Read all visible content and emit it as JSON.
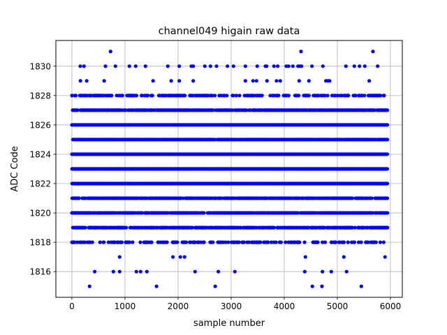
{
  "chart_data": {
    "type": "scatter",
    "title": "channel049 higain raw data",
    "xlabel": "sample number",
    "ylabel": "ADC Code",
    "xlim": [
      -302,
      6224
    ],
    "ylim": [
      1814.25,
      1831.75
    ],
    "xticks": [
      0,
      1000,
      2000,
      3000,
      4000,
      5000,
      6000
    ],
    "xtick_labels": [
      "0",
      "1000",
      "2000",
      "3000",
      "4000",
      "5000",
      "6000"
    ],
    "yticks": [
      1816,
      1818,
      1820,
      1822,
      1824,
      1826,
      1828,
      1830
    ],
    "ytick_labels": [
      "1816",
      "1818",
      "1820",
      "1822",
      "1824",
      "1826",
      "1828",
      "1830"
    ],
    "grid": true,
    "marker_color": "#0000ff",
    "sample_range": [
      0,
      5950
    ],
    "sparse_points": [
      {
        "y": 1831,
        "x": [
          728,
          4316,
          5671
        ]
      },
      {
        "y": 1830,
        "x": [
          158,
          228,
          632,
          820,
          1083,
          1202,
          1386,
          1807,
          2022,
          2250,
          2285,
          2504,
          2610,
          2724,
          2930,
          3044,
          3268,
          3491,
          3645,
          3667,
          3807,
          3877,
          4039,
          4083,
          4162,
          4259,
          4294,
          4325,
          4522,
          4728,
          5162,
          5320,
          5417,
          5518,
          5759
        ]
      },
      {
        "y": 1829,
        "x": [
          161,
          279,
          608,
          1529,
          1871,
          2022,
          2285,
          3268,
          3412,
          3478,
          3675,
          3855,
          3925,
          4281,
          4465,
          4785,
          4820,
          4855,
          5601
        ]
      },
      {
        "y": 1817,
        "x": [
          899,
          1903,
          2043,
          2122,
          4399,
          5123,
          5899
        ]
      },
      {
        "y": 1816,
        "x": [
          430,
          781,
          899,
          1215,
          1294,
          1412,
          2320,
          2759,
          3070,
          4386,
          4719,
          4886,
          5175
        ]
      },
      {
        "y": 1815,
        "x": [
          333,
          1594,
          2700,
          4530,
          4710,
          5452
        ]
      }
    ],
    "dense_levels": [
      {
        "y": 1828,
        "occupancy": 0.35
      },
      {
        "y": 1827,
        "occupancy": 0.75
      },
      {
        "y": 1826,
        "occupancy": 1.0
      },
      {
        "y": 1825,
        "occupancy": 0.85
      },
      {
        "y": 1824,
        "occupancy": 1.0
      },
      {
        "y": 1823,
        "occupancy": 1.0
      },
      {
        "y": 1822,
        "occupancy": 1.0
      },
      {
        "y": 1821,
        "occupancy": 0.7
      },
      {
        "y": 1820,
        "occupancy": 0.8
      },
      {
        "y": 1819,
        "occupancy": 0.6
      },
      {
        "y": 1818,
        "occupancy": 0.35
      }
    ]
  }
}
